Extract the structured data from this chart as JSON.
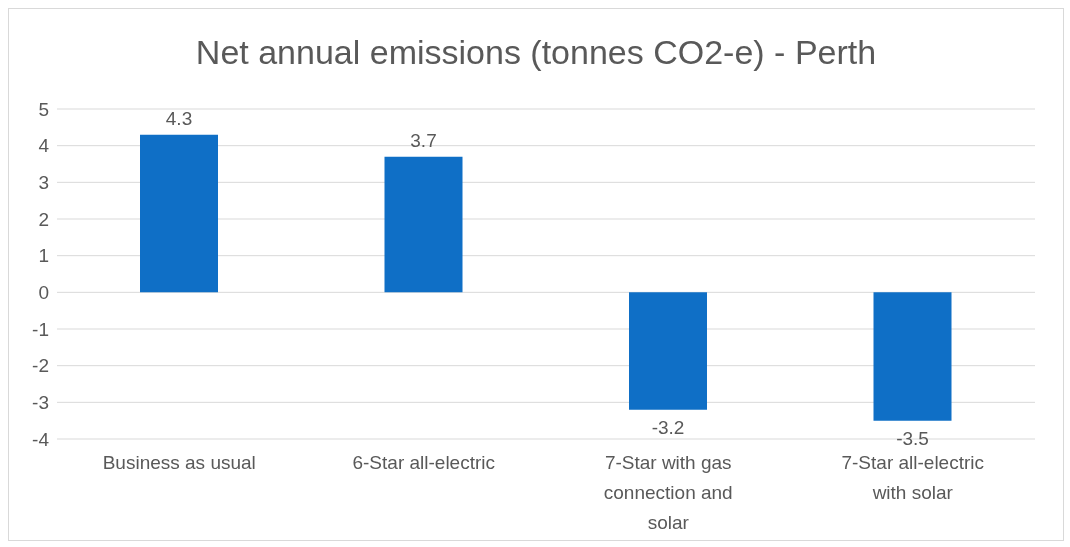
{
  "chart_data": {
    "type": "bar",
    "title": "Net annual emissions (tonnes CO2-e) - Perth",
    "categories": [
      "Business as usual",
      "6-Star all-electric",
      "7-Star with gas connection and solar",
      "7-Star all-electric with solar"
    ],
    "values": [
      4.3,
      3.7,
      -3.2,
      -3.5
    ],
    "color": "#0f6fc6",
    "ylim": [
      -4,
      5
    ],
    "yticks": [
      -4,
      -3,
      -2,
      -1,
      0,
      1,
      2,
      3,
      4,
      5
    ],
    "grid": "y",
    "data_labels": true
  }
}
